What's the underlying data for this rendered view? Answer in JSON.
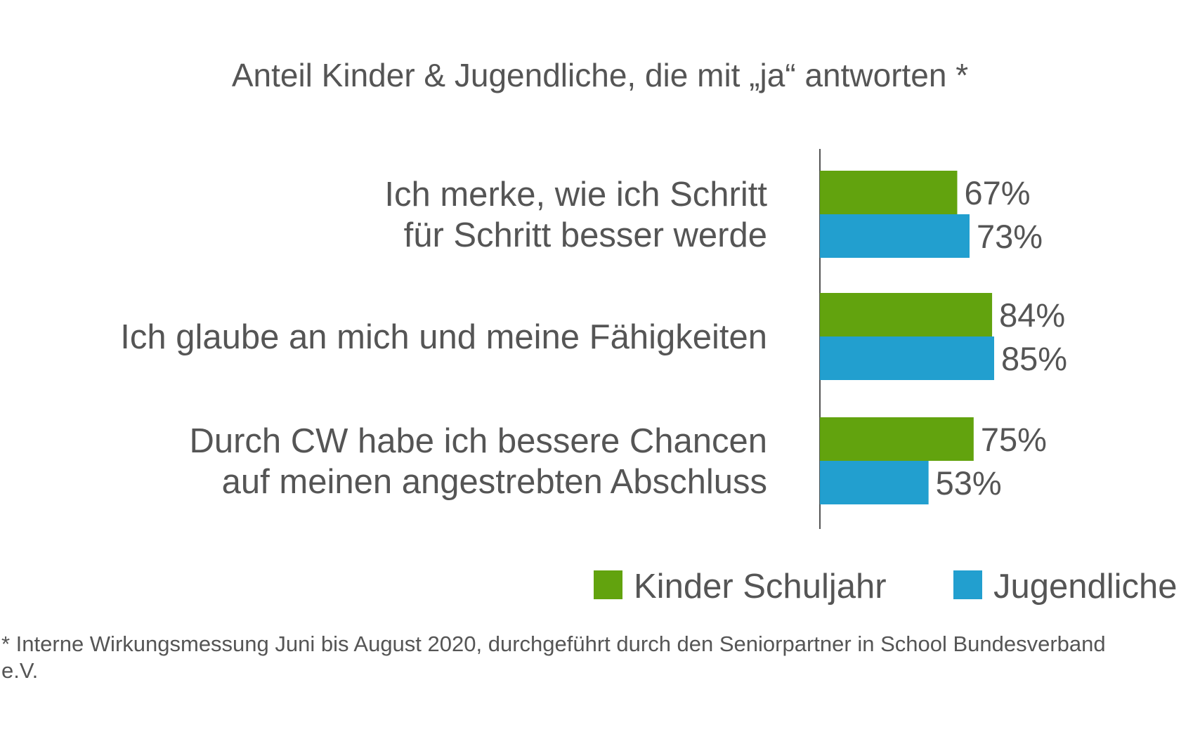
{
  "chart_data": {
    "type": "bar",
    "orientation": "horizontal",
    "title": "Anteil Kinder & Jugendliche, die mit „ja“ antworten *",
    "categories": [
      [
        "Ich merke, wie ich Schritt",
        "für Schritt besser werde"
      ],
      [
        "Ich glaube an mich und meine Fähigkeiten"
      ],
      [
        "Durch CW habe ich bessere Chancen",
        "auf meinen angestrebten Abschluss"
      ]
    ],
    "series": [
      {
        "name": "Kinder Schuljahr",
        "color": "#62A30E",
        "values": [
          67,
          84,
          75
        ],
        "labels": [
          "67%",
          "84%",
          "75%"
        ]
      },
      {
        "name": "Jugendliche",
        "color": "#229FCF",
        "values": [
          73,
          85,
          53
        ],
        "labels": [
          "73%",
          "85%",
          "53%"
        ]
      }
    ],
    "xlim": [
      0,
      100
    ],
    "unit": "%",
    "grid": false,
    "legend": "bottom-right"
  },
  "footnote": "* Interne Wirkungsmessung Juni bis August 2020, durchgeführt durch den Seniorpartner in School Bundesverband e.V."
}
